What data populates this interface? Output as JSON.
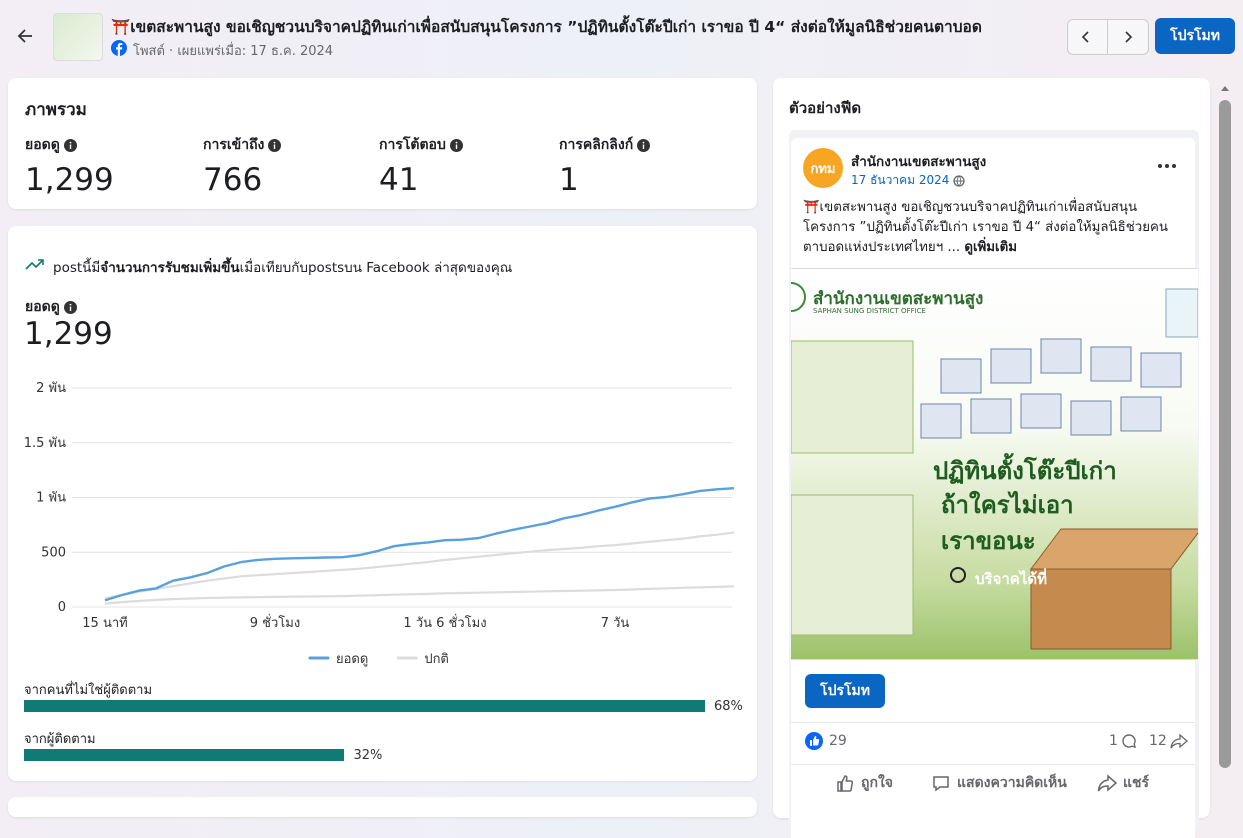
{
  "header": {
    "title": "⛩️เขตสะพานสูง ขอเชิญชวนบริจาคปฏิทินเก่าเพื่อสนับสนุนโครงการ ”ปฏิทินตั้งโต๊ะปีเก่า เราขอ ปี 4“ ส่งต่อให้มูลนิธิช่วยคนตาบอด",
    "subtitle": "โพสต์ · เผยแพร่เมื่อ: 17 ธ.ค. 2024",
    "promote": "โปรโมท"
  },
  "overview": {
    "title": "ภาพรวม",
    "metrics": [
      {
        "label": "ยอดดู",
        "value": "1,299"
      },
      {
        "label": "การเข้าถึง",
        "value": "766"
      },
      {
        "label": "การโต้ตอบ",
        "value": "41"
      },
      {
        "label": "การคลิกลิงก์",
        "value": "1"
      }
    ]
  },
  "performance": {
    "note_prefix": "postนี้มี",
    "note_bold": "จำนวนการรับชมเพิ่มขึ้น",
    "note_suffix": "เมื่อเทียบกับpostsบน Facebook ล่าสุดของคุณ",
    "metric_label": "ยอดดู",
    "metric_value": "1,299"
  },
  "chart_data": {
    "type": "line",
    "categories": [
      "15 นาที",
      null,
      null,
      null,
      null,
      null,
      null,
      null,
      null,
      null,
      "9 ชั่วโมง",
      null,
      null,
      null,
      null,
      null,
      null,
      null,
      null,
      null,
      "1 วัน 6 ชั่วโมง",
      null,
      null,
      null,
      null,
      null,
      null,
      null,
      null,
      null,
      "7 วัน",
      null,
      null,
      null,
      null,
      null,
      null,
      null
    ],
    "series": [
      {
        "name": "ยอดดู",
        "color": "#5aa0dc",
        "values": [
          60,
          110,
          150,
          170,
          240,
          270,
          310,
          370,
          410,
          430,
          440,
          445,
          448,
          452,
          455,
          475,
          510,
          555,
          575,
          590,
          610,
          615,
          630,
          670,
          705,
          735,
          765,
          810,
          840,
          880,
          915,
          955,
          990,
          1005,
          1030,
          1060,
          1075,
          1085
        ]
      },
      {
        "name": "ปกติ",
        "color": "#dcdcdc",
        "values": [
          80,
          110,
          140,
          165,
          190,
          215,
          240,
          260,
          280,
          290,
          300,
          310,
          320,
          330,
          340,
          350,
          365,
          380,
          395,
          410,
          430,
          445,
          460,
          475,
          490,
          505,
          520,
          530,
          540,
          555,
          565,
          580,
          595,
          610,
          625,
          645,
          660,
          680
        ],
        "low_values": [
          30,
          45,
          55,
          65,
          72,
          78,
          82,
          85,
          88,
          90,
          92,
          94,
          96,
          98,
          100,
          104,
          108,
          112,
          116,
          120,
          125,
          128,
          131,
          134,
          137,
          140,
          143,
          146,
          149,
          152,
          155,
          160,
          165,
          170,
          175,
          180,
          184,
          188
        ]
      }
    ],
    "ylim": [
      0,
      2000
    ],
    "yticks": [
      0,
      500,
      {
        "value": 1000,
        "label": "1 พัน"
      },
      {
        "value": 1500,
        "label": "1.5 พัน"
      },
      {
        "value": 2000,
        "label": "2 พัน"
      }
    ],
    "grid": true,
    "legend": "bottom"
  },
  "audience": {
    "categories": [
      "จากคนที่ไม่ใช่ผู้ติดตาม",
      "จากผู้ติดตาม"
    ],
    "values": [
      68,
      32
    ],
    "value_labels": [
      "68%",
      "32%"
    ],
    "color": "#0f7b74"
  },
  "feed": {
    "title": "ตัวอย่างฟีด",
    "post": {
      "avatar_text": "กทม",
      "page_name": "สำนักงานเขตสะพานสูง",
      "date": "17 ธันวาคม 2024",
      "text": "⛩️เขตสะพานสูง ขอเชิญชวนบริจาคปฏิทินเก่าเพื่อสนับสนุนโครงการ ”ปฏิทินตั้งโต๊ะปีเก่า เราขอ ปี 4“ ส่งต่อให้มูลนิธิช่วยคนตาบอดแห่งประเทศไทยฯ ...",
      "more": "ดูเพิ่มเติม",
      "image_texts": {
        "org": "สำนักงานเขตสะพานสูง",
        "org_en": "SAPHAN SUNG DISTRICT OFFICE",
        "headline_1": "ปฏิทินตั้งโต๊ะปีเก่า",
        "headline_2": "ถ้าใครไม่เอา",
        "headline_3": "เราขอนะ",
        "donate": "บริจาคได้ที่"
      },
      "promote": "โปรโมท",
      "reactions": "29",
      "comments": "1",
      "shares": "12",
      "actions": [
        "ถูกใจ",
        "แสดงความคิดเห็น",
        "แชร์"
      ]
    }
  }
}
